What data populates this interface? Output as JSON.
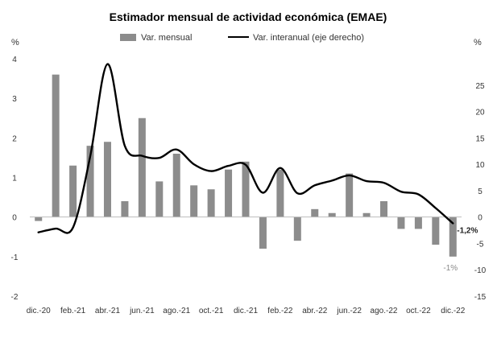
{
  "chart_data": {
    "type": "bar+line",
    "title": "Estimador mensual de actividad económica (EMAE)",
    "left_axis_unit": "%",
    "right_axis_unit": "%",
    "ylim_left": [
      -2,
      4
    ],
    "ylim_right": [
      -15,
      30
    ],
    "left_ticks": [
      "4",
      "3",
      "2",
      "1",
      "0",
      "-1",
      "-2"
    ],
    "left_tick_values": [
      4,
      3,
      2,
      1,
      0,
      -1,
      -2
    ],
    "right_ticks": [
      "25",
      "20",
      "15",
      "10",
      "5",
      "0",
      "-5",
      "-10",
      "-15"
    ],
    "right_tick_values": [
      25,
      20,
      15,
      10,
      5,
      0,
      -5,
      -10,
      -15
    ],
    "x_tick_labels": [
      "dic.-20",
      "feb.-21",
      "abr.-21",
      "jun.-21",
      "ago.-21",
      "oct.-21",
      "dic.-21",
      "feb.-22",
      "abr.-22",
      "jun.-22",
      "ago.-22",
      "oct.-22",
      "dic.-22"
    ],
    "categories": [
      "dic.-20",
      "ene.-21",
      "feb.-21",
      "mar.-21",
      "abr.-21",
      "may.-21",
      "jun.-21",
      "jul.-21",
      "ago.-21",
      "sep.-21",
      "oct.-21",
      "nov.-21",
      "dic.-21",
      "ene.-22",
      "feb.-22",
      "mar.-22",
      "abr.-22",
      "may.-22",
      "jun.-22",
      "jul.-22",
      "ago.-22",
      "sep.-22",
      "oct.-22",
      "nov.-22",
      "dic.-22"
    ],
    "series": [
      {
        "name": "Var. mensual",
        "type": "bar",
        "axis": "left",
        "color": "#8c8c8c",
        "values": [
          -0.1,
          3.6,
          1.3,
          1.8,
          1.9,
          0.4,
          2.5,
          0.9,
          1.6,
          0.8,
          0.7,
          1.2,
          1.4,
          -0.8,
          1.2,
          -0.6,
          0.2,
          0.1,
          1.1,
          0.1,
          0.4,
          -0.3,
          -0.3,
          -0.7,
          -1.0
        ]
      },
      {
        "name": "Var. interanual (eje derecho)",
        "type": "line",
        "axis": "right",
        "color": "#000000",
        "values": [
          -2.9,
          -2.2,
          -2.0,
          11.5,
          29.0,
          13.5,
          11.6,
          11.2,
          12.8,
          10.0,
          8.7,
          9.7,
          9.9,
          4.6,
          9.3,
          4.5,
          6.0,
          6.9,
          7.9,
          6.8,
          6.5,
          4.8,
          4.3,
          1.7,
          -1.2
        ]
      }
    ],
    "annotations": [
      {
        "text": "-1,2%",
        "target": "line_last",
        "style": "bold"
      },
      {
        "text": "-1%",
        "target": "bar_last",
        "style": "light"
      }
    ]
  }
}
